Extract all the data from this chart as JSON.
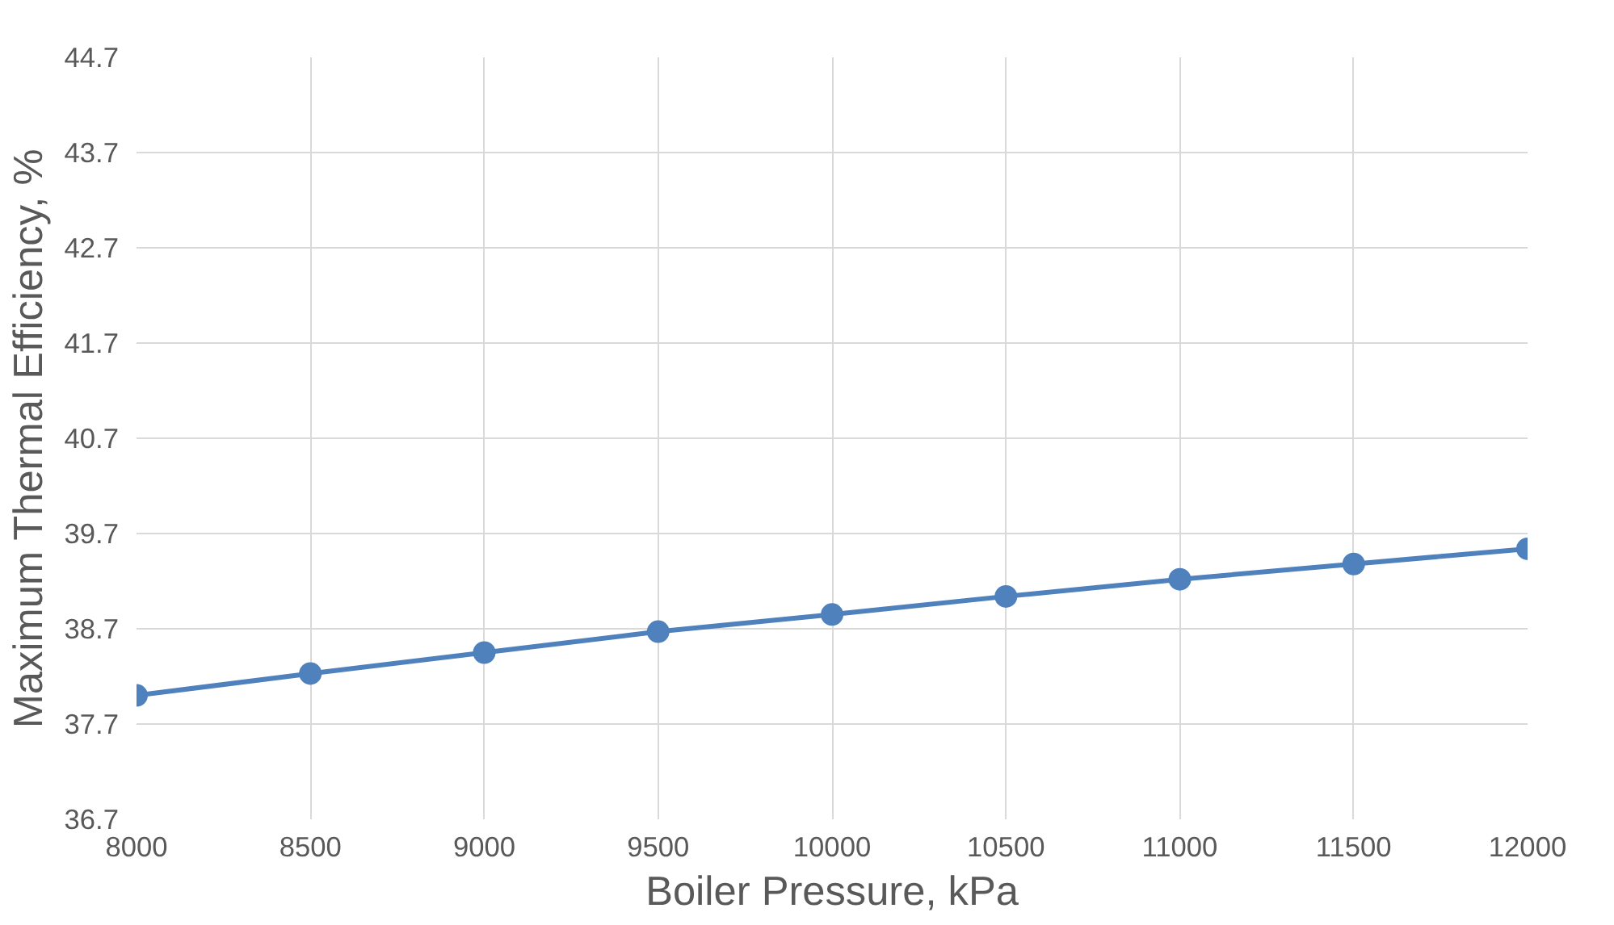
{
  "chart_data": {
    "type": "line",
    "xlabel": "Boiler Pressure, kPa",
    "ylabel": "Maximum Thermal Efficiency, %",
    "x": [
      8000,
      8500,
      9000,
      9500,
      10000,
      10500,
      11000,
      11500,
      12000
    ],
    "series": [
      {
        "color": "#4f81bd",
        "values": [
          38.0,
          38.23,
          38.45,
          38.67,
          38.85,
          39.04,
          39.22,
          39.38,
          39.54
        ]
      }
    ],
    "xlim": [
      8000,
      12000
    ],
    "xticks": [
      8000,
      8500,
      9000,
      9500,
      10000,
      10500,
      11000,
      11500,
      12000
    ],
    "ylim": [
      36.7,
      44.7
    ],
    "yticks": [
      36.7,
      37.7,
      38.7,
      39.7,
      40.7,
      41.7,
      42.7,
      43.7,
      44.7
    ],
    "grid": true,
    "marker": "circle",
    "line_style": "solid"
  }
}
